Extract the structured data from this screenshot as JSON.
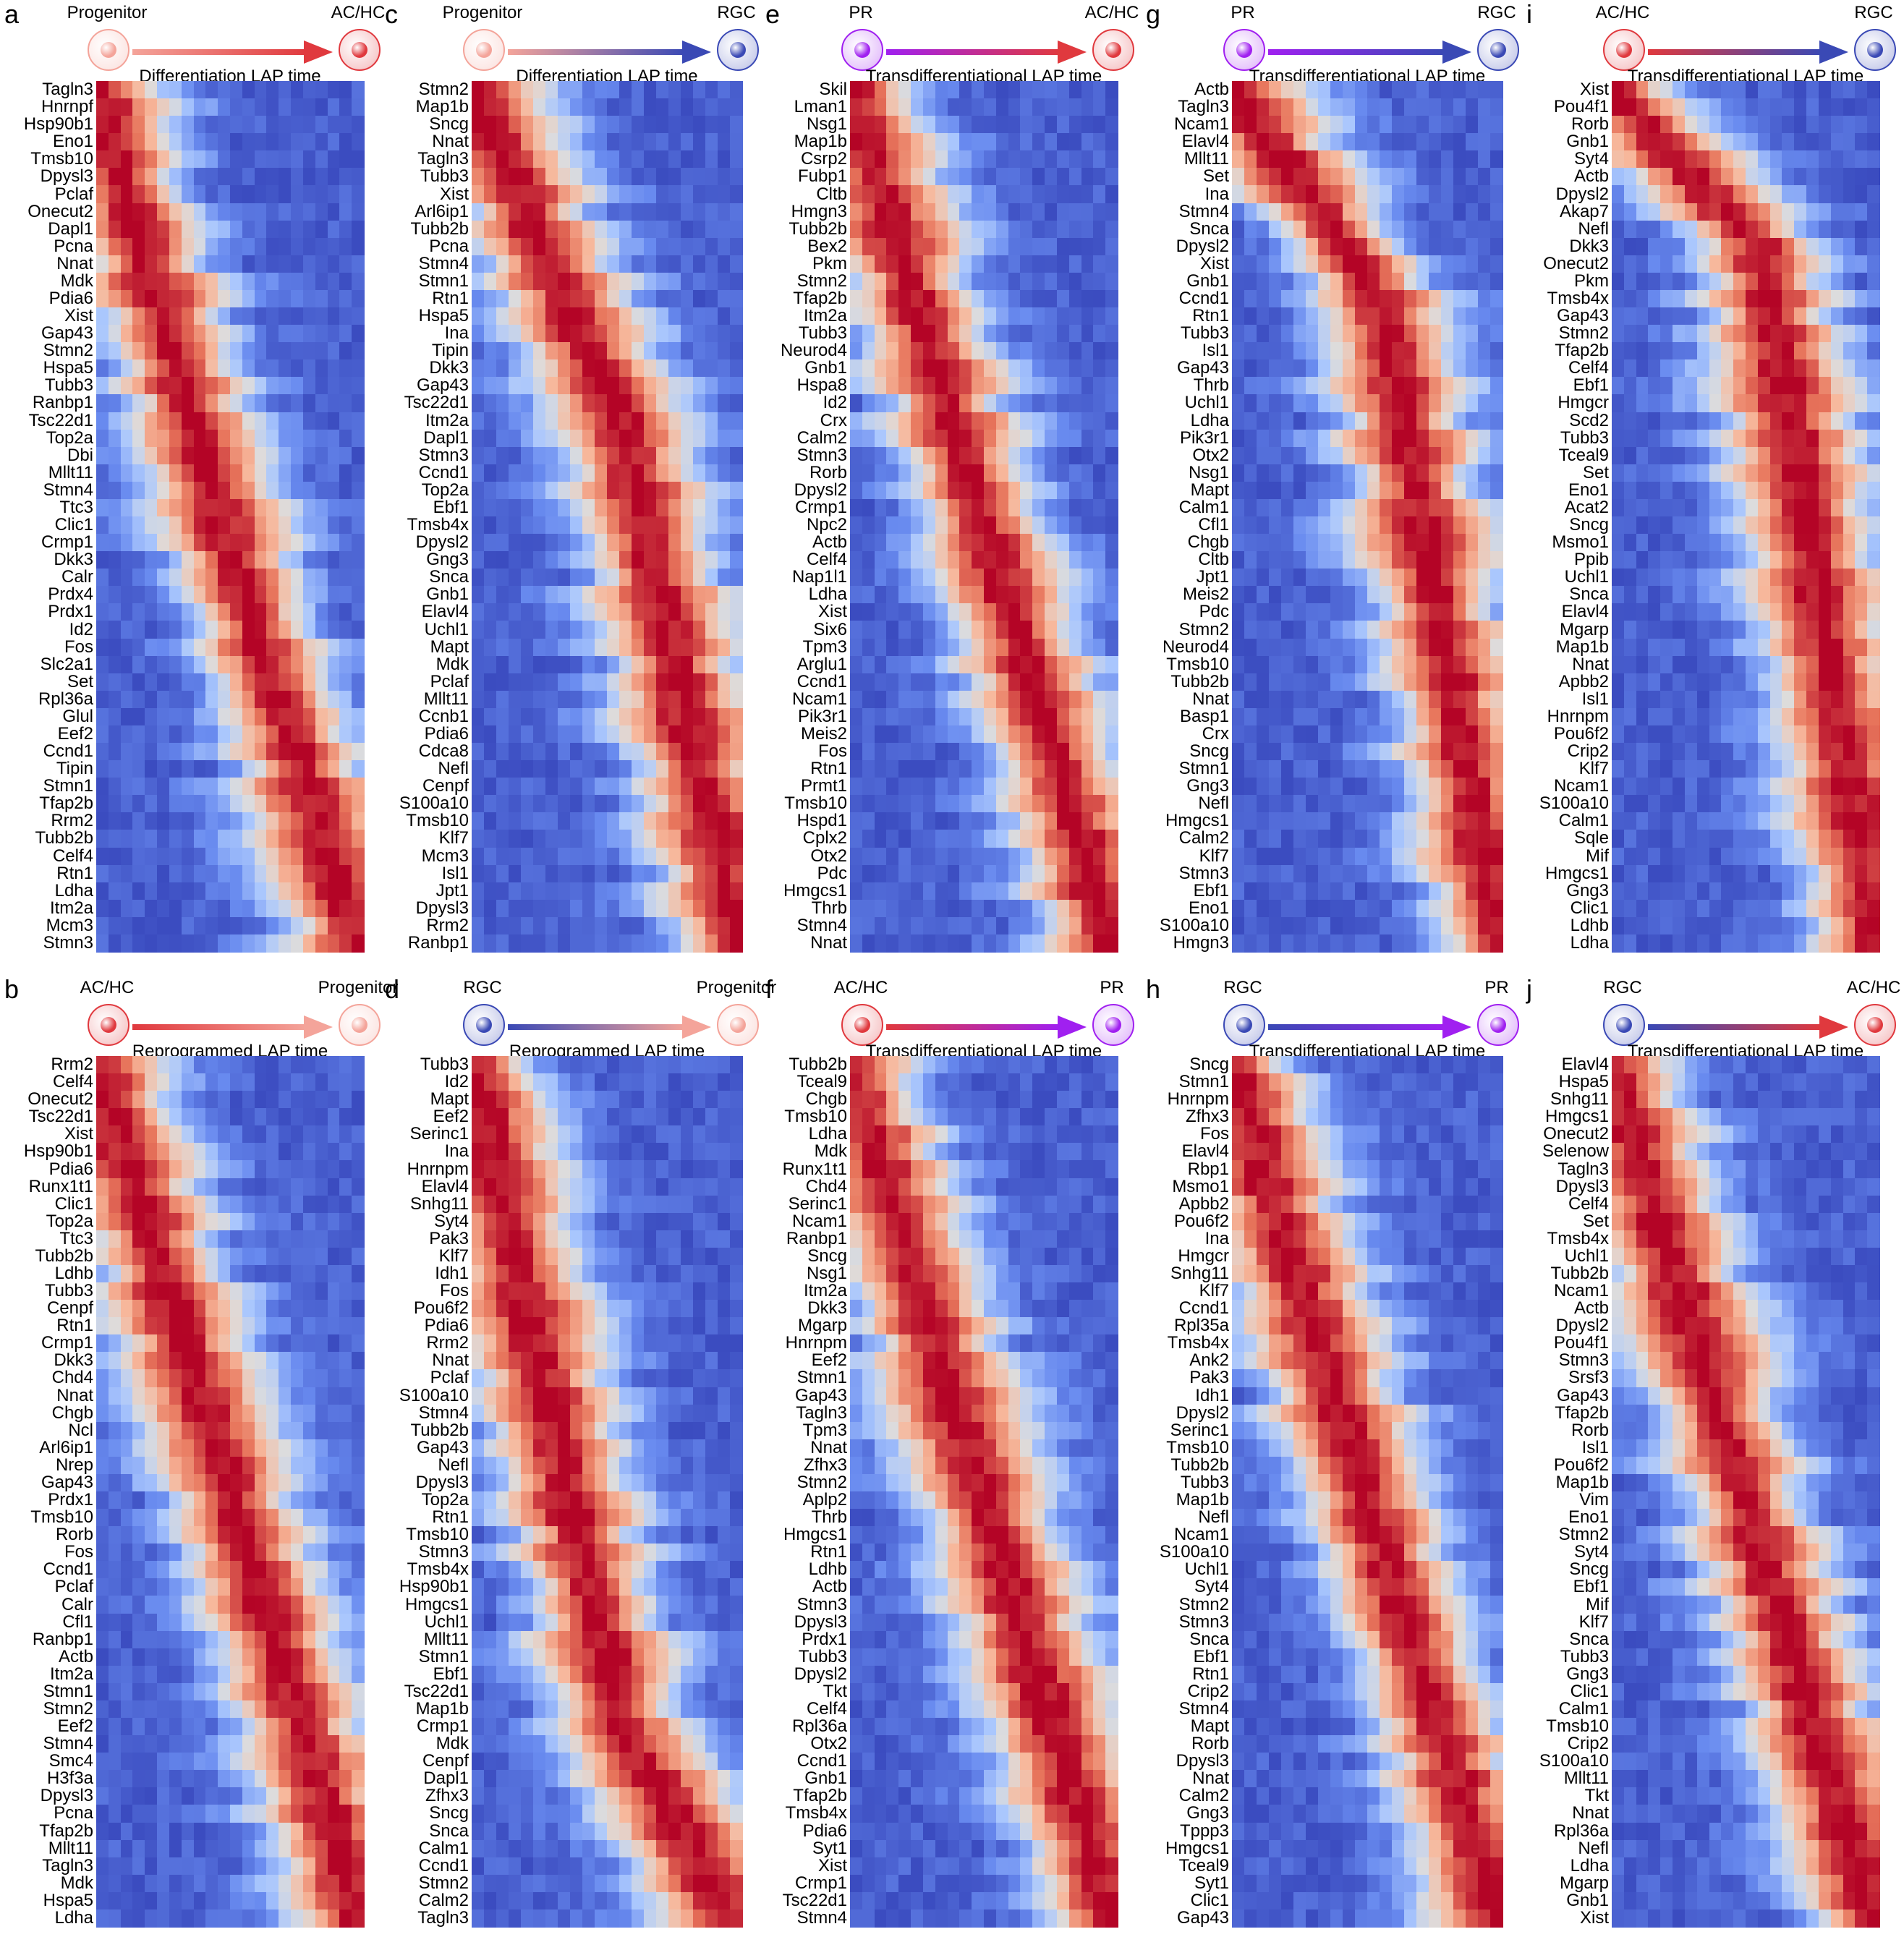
{
  "colors": {
    "PR": "#a020f0",
    "Progenitor": "#f4a49a",
    "AC/HC": "#e0393e",
    "RGC": "#3a49b5",
    "colormap": [
      "#3b4cc0",
      "#688aef",
      "#aac7fd",
      "#dddcdc",
      "#f7b89c",
      "#e7745b",
      "#b40426"
    ]
  },
  "panels": [
    {
      "id": "a",
      "from": "Progenitor",
      "to": "AC/HC",
      "title": "Differentiation LAP time",
      "cols": 22,
      "split": 29,
      "genes": [
        "Tagln3",
        "Hnrnpf",
        "Hsp90b1",
        "Eno1",
        "Tmsb10",
        "Dpysl3",
        "Pclaf",
        "Onecut2",
        "Dapl1",
        "Pcna",
        "Nnat",
        "Mdk",
        "Pdia6",
        "Xist",
        "Gap43",
        "Stmn2",
        "Hspa5",
        "Tubb3",
        "Ranbp1",
        "Tsc22d1",
        "Top2a",
        "Dbi",
        "Mllt11",
        "Stmn4",
        "Ttc3",
        "Clic1",
        "Crmp1",
        "Dkk3",
        "Calr",
        "Prdx4",
        "Prdx1",
        "Id2",
        "Fos",
        "Slc2a1",
        "Set",
        "Rpl36a",
        "Glul",
        "Eef2",
        "Ccnd1",
        "Tipin",
        "Stmn1",
        "Tfap2b",
        "Rrm2",
        "Tubb2b",
        "Celf4",
        "Rtn1",
        "Ldha",
        "Itm2a",
        "Mcm3",
        "Stmn3"
      ]
    },
    {
      "id": "b",
      "from": "AC/HC",
      "to": "Progenitor",
      "title": "Reprogrammed LAP time",
      "cols": 22,
      "split": 27,
      "genes": [
        "Rrm2",
        "Celf4",
        "Onecut2",
        "Tsc22d1",
        "Xist",
        "Hsp90b1",
        "Pdia6",
        "Runx1t1",
        "Clic1",
        "Top2a",
        "Ttc3",
        "Tubb2b",
        "Ldhb",
        "Tubb3",
        "Cenpf",
        "Rtn1",
        "Crmp1",
        "Dkk3",
        "Chd4",
        "Nnat",
        "Chgb",
        "Ncl",
        "Arl6ip1",
        "Nrep",
        "Gap43",
        "Prdx1",
        "Tmsb10",
        "Rorb",
        "Fos",
        "Ccnd1",
        "Pclaf",
        "Calr",
        "Cfl1",
        "Ranbp1",
        "Actb",
        "Itm2a",
        "Stmn1",
        "Stmn2",
        "Eef2",
        "Stmn4",
        "Smc4",
        "H3f3a",
        "Dpysl3",
        "Pcna",
        "Tfap2b",
        "Mllt11",
        "Tagln3",
        "Mdk",
        "Hspa5",
        "Ldha"
      ]
    },
    {
      "id": "c",
      "from": "Progenitor",
      "to": "RGC",
      "title": "Differentiation LAP time",
      "cols": 22,
      "split": 19,
      "genes": [
        "Stmn2",
        "Map1b",
        "Sncg",
        "Nnat",
        "Tagln3",
        "Tubb3",
        "Xist",
        "Arl6ip1",
        "Tubb2b",
        "Pcna",
        "Stmn4",
        "Stmn1",
        "Rtn1",
        "Hspa5",
        "Ina",
        "Tipin",
        "Dkk3",
        "Gap43",
        "Tsc22d1",
        "Itm2a",
        "Dapl1",
        "Stmn3",
        "Ccnd1",
        "Top2a",
        "Ebf1",
        "Tmsb4x",
        "Dpysl2",
        "Gng3",
        "Snca",
        "Gnb1",
        "Elavl4",
        "Uchl1",
        "Mapt",
        "Mdk",
        "Pclaf",
        "Mllt11",
        "Ccnb1",
        "Pdia6",
        "Cdca8",
        "Nefl",
        "Cenpf",
        "S100a10",
        "Tmsb10",
        "Klf7",
        "Mcm3",
        "Isl1",
        "Jpt1",
        "Dpysl3",
        "Rrm2",
        "Ranbp1"
      ]
    },
    {
      "id": "d",
      "from": "RGC",
      "to": "Progenitor",
      "title": "Reprogrammed LAP time",
      "cols": 22,
      "split": 38,
      "genes": [
        "Tubb3",
        "Id2",
        "Mapt",
        "Eef2",
        "Serinc1",
        "Ina",
        "Hnrnpm",
        "Elavl4",
        "Snhg11",
        "Syt4",
        "Pak3",
        "Klf7",
        "Idh1",
        "Fos",
        "Pou6f2",
        "Pdia6",
        "Rrm2",
        "Nnat",
        "Pclaf",
        "S100a10",
        "Stmn4",
        "Tubb2b",
        "Gap43",
        "Nefl",
        "Dpysl3",
        "Top2a",
        "Rtn1",
        "Tmsb10",
        "Stmn3",
        "Tmsb4x",
        "Hsp90b1",
        "Hmgcs1",
        "Uchl1",
        "Mllt11",
        "Stmn1",
        "Ebf1",
        "Tsc22d1",
        "Map1b",
        "Crmp1",
        "Mdk",
        "Cenpf",
        "Dapl1",
        "Zfhx3",
        "Sncg",
        "Snca",
        "Calm1",
        "Ccnd1",
        "Stmn2",
        "Calm2",
        "Tagln3"
      ]
    },
    {
      "id": "e",
      "from": "PR",
      "to": "AC/HC",
      "title": "Transdifferentiational LAP time",
      "cols": 22,
      "split": null,
      "genes": [
        "Skil",
        "Lman1",
        "Nsg1",
        "Map1b",
        "Csrp2",
        "Fubp1",
        "Cltb",
        "Hmgn3",
        "Tubb2b",
        "Bex2",
        "Pkm",
        "Stmn2",
        "Tfap2b",
        "Itm2a",
        "Tubb3",
        "Neurod4",
        "Gnb1",
        "Hspa8",
        "Id2",
        "Crx",
        "Calm2",
        "Stmn3",
        "Rorb",
        "Dpysl2",
        "Crmp1",
        "Npc2",
        "Actb",
        "Celf4",
        "Nap1l1",
        "Ldha",
        "Xist",
        "Six6",
        "Tpm3",
        "Arglu1",
        "Ccnd1",
        "Ncam1",
        "Pik3r1",
        "Meis2",
        "Fos",
        "Rtn1",
        "Prmt1",
        "Tmsb10",
        "Hspd1",
        "Cplx2",
        "Otx2",
        "Pdc",
        "Hmgcs1",
        "Thrb",
        "Stmn4",
        "Nnat"
      ]
    },
    {
      "id": "f",
      "from": "AC/HC",
      "to": "PR",
      "title": "Transdifferentiational LAP time",
      "cols": 22,
      "split": null,
      "genes": [
        "Tubb2b",
        "Tceal9",
        "Chgb",
        "Tmsb10",
        "Ldha",
        "Mdk",
        "Runx1t1",
        "Chd4",
        "Serinc1",
        "Ncam1",
        "Ranbp1",
        "Sncg",
        "Nsg1",
        "Itm2a",
        "Dkk3",
        "Mgarp",
        "Hnrnpm",
        "Eef2",
        "Stmn1",
        "Gap43",
        "Tagln3",
        "Tpm3",
        "Nnat",
        "Zfhx3",
        "Stmn2",
        "Aplp2",
        "Thrb",
        "Hmgcs1",
        "Rtn1",
        "Ldhb",
        "Actb",
        "Stmn3",
        "Dpysl3",
        "Prdx1",
        "Tubb3",
        "Dpysl2",
        "Tkt",
        "Celf4",
        "Rpl36a",
        "Otx2",
        "Ccnd1",
        "Gnb1",
        "Tfap2b",
        "Tmsb4x",
        "Pdia6",
        "Syt1",
        "Xist",
        "Crmp1",
        "Tsc22d1",
        "Stmn4"
      ]
    },
    {
      "id": "g",
      "from": "PR",
      "to": "RGC",
      "title": "Transdifferentiational LAP time",
      "cols": 22,
      "split": 12,
      "genes": [
        "Actb",
        "Tagln3",
        "Ncam1",
        "Elavl4",
        "Mllt11",
        "Set",
        "Ina",
        "Stmn4",
        "Snca",
        "Dpysl2",
        "Xist",
        "Gnb1",
        "Ccnd1",
        "Rtn1",
        "Tubb3",
        "Isl1",
        "Gap43",
        "Thrb",
        "Uchl1",
        "Ldha",
        "Pik3r1",
        "Otx2",
        "Nsg1",
        "Mapt",
        "Calm1",
        "Cfl1",
        "Chgb",
        "Cltb",
        "Jpt1",
        "Meis2",
        "Pdc",
        "Stmn2",
        "Neurod4",
        "Tmsb10",
        "Tubb2b",
        "Nnat",
        "Basp1",
        "Crx",
        "Sncg",
        "Stmn1",
        "Gng3",
        "Nefl",
        "Hmgcs1",
        "Calm2",
        "Klf7",
        "Stmn3",
        "Ebf1",
        "Eno1",
        "S100a10",
        "Hmgn3"
      ]
    },
    {
      "id": "h",
      "from": "RGC",
      "to": "PR",
      "title": "Transdifferentiational LAP time",
      "cols": 22,
      "split": null,
      "genes": [
        "Sncg",
        "Stmn1",
        "Hnrnpm",
        "Zfhx3",
        "Fos",
        "Elavl4",
        "Rbp1",
        "Msmo1",
        "Apbb2",
        "Pou6f2",
        "Ina",
        "Hmgcr",
        "Snhg11",
        "Klf7",
        "Ccnd1",
        "Rpl35a",
        "Tmsb4x",
        "Ank2",
        "Pak3",
        "Idh1",
        "Dpysl2",
        "Serinc1",
        "Tmsb10",
        "Tubb2b",
        "Tubb3",
        "Map1b",
        "Nefl",
        "Ncam1",
        "S100a10",
        "Uchl1",
        "Syt4",
        "Stmn2",
        "Stmn3",
        "Snca",
        "Ebf1",
        "Rtn1",
        "Crip2",
        "Stmn4",
        "Mapt",
        "Rorb",
        "Dpysl3",
        "Nnat",
        "Calm2",
        "Gng3",
        "Tppp3",
        "Hmgcs1",
        "Tceal9",
        "Syt1",
        "Clic1",
        "Gap43"
      ]
    },
    {
      "id": "i",
      "from": "AC/HC",
      "to": "RGC",
      "title": "Transdifferentiational LAP time",
      "cols": 22,
      "split": 9,
      "genes": [
        "Xist",
        "Pou4f1",
        "Rorb",
        "Gnb1",
        "Syt4",
        "Actb",
        "Dpysl2",
        "Akap7",
        "Nefl",
        "Dkk3",
        "Onecut2",
        "Pkm",
        "Tmsb4x",
        "Gap43",
        "Stmn2",
        "Tfap2b",
        "Celf4",
        "Ebf1",
        "Hmgcr",
        "Scd2",
        "Tubb3",
        "Tceal9",
        "Set",
        "Eno1",
        "Acat2",
        "Sncg",
        "Msmo1",
        "Ppib",
        "Uchl1",
        "Snca",
        "Elavl4",
        "Mgarp",
        "Map1b",
        "Nnat",
        "Apbb2",
        "Isl1",
        "Hnrnpm",
        "Pou6f2",
        "Crip2",
        "Klf7",
        "Ncam1",
        "S100a10",
        "Calm1",
        "Sqle",
        "Mif",
        "Hmgcs1",
        "Gng3",
        "Clic1",
        "Ldhb",
        "Ldha"
      ]
    },
    {
      "id": "j",
      "from": "RGC",
      "to": "AC/HC",
      "title": "Transdifferentiational LAP time",
      "cols": 22,
      "split": null,
      "genes": [
        "Elavl4",
        "Hspa5",
        "Snhg11",
        "Hmgcs1",
        "Onecut2",
        "Selenow",
        "Tagln3",
        "Dpysl3",
        "Celf4",
        "Set",
        "Tmsb4x",
        "Uchl1",
        "Tubb2b",
        "Ncam1",
        "Actb",
        "Dpysl2",
        "Pou4f1",
        "Stmn3",
        "Srsf3",
        "Gap43",
        "Tfap2b",
        "Rorb",
        "Isl1",
        "Pou6f2",
        "Map1b",
        "Vim",
        "Eno1",
        "Stmn2",
        "Syt4",
        "Sncg",
        "Ebf1",
        "Mif",
        "Klf7",
        "Snca",
        "Tubb3",
        "Gng3",
        "Clic1",
        "Calm1",
        "Tmsb10",
        "Crip2",
        "S100a10",
        "Mllt11",
        "Tkt",
        "Nnat",
        "Rpl36a",
        "Nefl",
        "Ldha",
        "Mgarp",
        "Gnb1",
        "Xist"
      ]
    }
  ],
  "chart_data": {
    "type": "heatmap",
    "x_axis": "LAP time (pseudotime bins, left to right)",
    "color_scale": "coolwarm (low = blue, high = red)",
    "panels": [
      "a",
      "b",
      "c",
      "d",
      "e",
      "f",
      "g",
      "h",
      "i",
      "j"
    ]
  }
}
